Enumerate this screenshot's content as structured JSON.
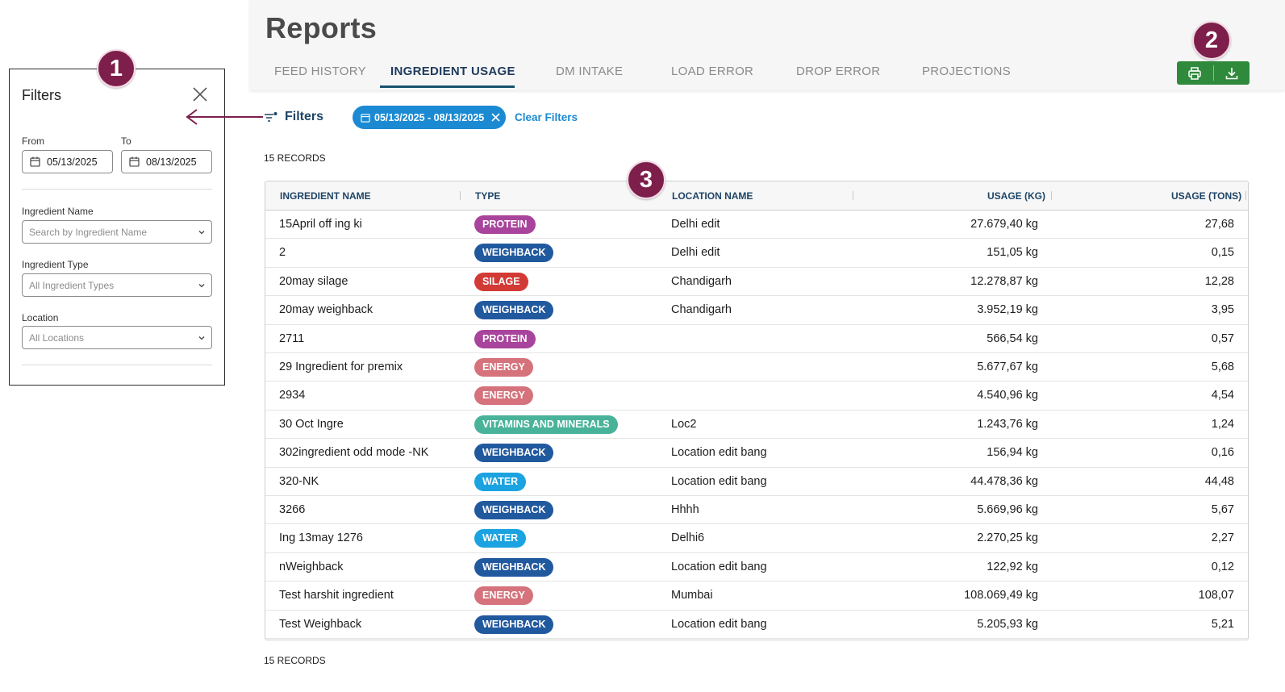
{
  "filters_panel": {
    "title": "Filters",
    "from_label": "From",
    "from_value": "05/13/2025",
    "to_label": "To",
    "to_value": "08/13/2025",
    "ingredient_name_label": "Ingredient Name",
    "ingredient_name_placeholder": "Search by Ingredient Name",
    "ingredient_type_label": "Ingredient Type",
    "ingredient_type_value": "All Ingredient Types",
    "location_label": "Location",
    "location_value": "All Locations"
  },
  "callouts": [
    "1",
    "2",
    "3"
  ],
  "header": {
    "title": "Reports",
    "tabs": [
      "FEED HISTORY",
      "INGREDIENT USAGE",
      "DM INTAKE",
      "LOAD ERROR",
      "DROP ERROR",
      "PROJECTIONS"
    ],
    "active_tab": "INGREDIENT USAGE",
    "actions": [
      "printer-icon",
      "download-icon"
    ]
  },
  "filter_bar": {
    "toggle_label": "Filters",
    "date_chip": "05/13/2025 - 08/13/2025",
    "clear_label": "Clear Filters"
  },
  "records_label_top": "15 RECORDS",
  "records_label_bottom": "15 RECORDS",
  "table": {
    "columns": [
      "INGREDIENT NAME",
      "TYPE",
      "LOCATION NAME",
      "USAGE (KG)",
      "USAGE (TONS)"
    ],
    "type_colors": {
      "PROTEIN": "#a8449b",
      "WEIGHBACK": "#21599e",
      "SILAGE": "#d23a36",
      "ENERGY": "#d5727c",
      "VITAMINS AND MINERALS": "#49b39a",
      "WATER": "#1aa3e0"
    },
    "rows": [
      {
        "name": "15April off ing ki",
        "type": "PROTEIN",
        "location": "Delhi edit",
        "kg": "27.679,40 kg",
        "tons": "27,68"
      },
      {
        "name": "2",
        "type": "WEIGHBACK",
        "location": "Delhi edit",
        "kg": "151,05 kg",
        "tons": "0,15"
      },
      {
        "name": "20may silage",
        "type": "SILAGE",
        "location": "Chandigarh",
        "kg": "12.278,87 kg",
        "tons": "12,28"
      },
      {
        "name": "20may weighback",
        "type": "WEIGHBACK",
        "location": "Chandigarh",
        "kg": "3.952,19 kg",
        "tons": "3,95"
      },
      {
        "name": "2711",
        "type": "PROTEIN",
        "location": "",
        "kg": "566,54 kg",
        "tons": "0,57"
      },
      {
        "name": "29 Ingredient for premix",
        "type": "ENERGY",
        "location": "",
        "kg": "5.677,67 kg",
        "tons": "5,68"
      },
      {
        "name": "2934",
        "type": "ENERGY",
        "location": "",
        "kg": "4.540,96 kg",
        "tons": "4,54"
      },
      {
        "name": "30 Oct Ingre",
        "type": "VITAMINS AND MINERALS",
        "location": "Loc2",
        "kg": "1.243,76 kg",
        "tons": "1,24"
      },
      {
        "name": "302ingredient odd mode -NK",
        "type": "WEIGHBACK",
        "location": "Location edit bang",
        "kg": "156,94 kg",
        "tons": "0,16"
      },
      {
        "name": "320-NK",
        "type": "WATER",
        "location": "Location edit bang",
        "kg": "44.478,36 kg",
        "tons": "44,48"
      },
      {
        "name": "3266",
        "type": "WEIGHBACK",
        "location": "Hhhh",
        "kg": "5.669,96 kg",
        "tons": "5,67"
      },
      {
        "name": "Ing 13may 1276",
        "type": "WATER",
        "location": "Delhi6",
        "kg": "2.270,25 kg",
        "tons": "2,27"
      },
      {
        "name": "nWeighback",
        "type": "WEIGHBACK",
        "location": "Location edit bang",
        "kg": "122,92 kg",
        "tons": "0,12"
      },
      {
        "name": "Test harshit ingredient",
        "type": "ENERGY",
        "location": "Mumbai",
        "kg": "108.069,49 kg",
        "tons": "108,07"
      },
      {
        "name": "Test Weighback",
        "type": "WEIGHBACK",
        "location": "Location edit bang",
        "kg": "5.205,93 kg",
        "tons": "5,21"
      }
    ]
  }
}
